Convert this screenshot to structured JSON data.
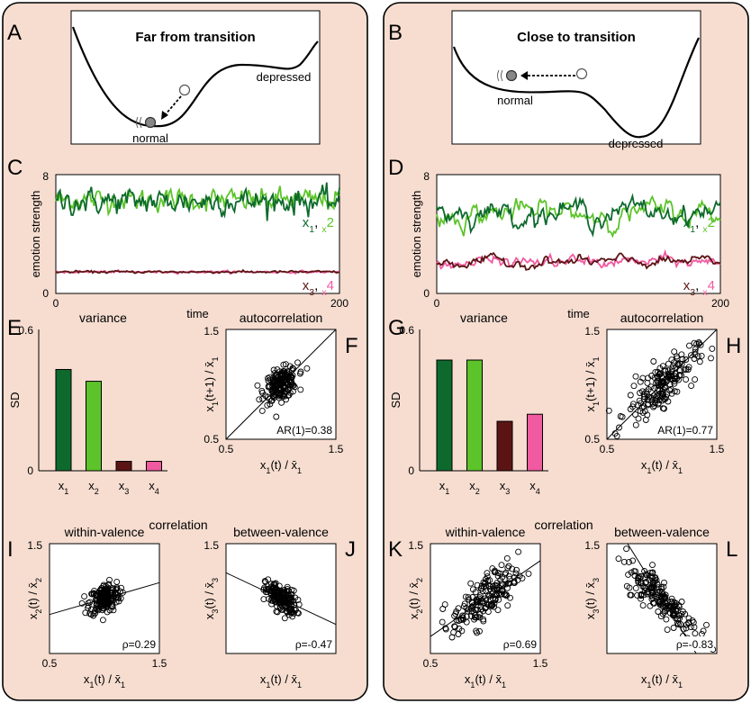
{
  "colors": {
    "panel_bg": "#f6ddd0",
    "x1": "#0e6a2c",
    "x2": "#5cc42a",
    "x3": "#5b1414",
    "x4": "#f05aa0"
  },
  "halves": [
    {
      "letters": {
        "landscape": "A",
        "timeseries": "C",
        "variance": "E",
        "autocorr": "F",
        "within": "I",
        "between": "J"
      },
      "landscape": {
        "title": "Far from transition",
        "label_left": "normal",
        "label_right": "depressed"
      },
      "timeseries": {
        "ylabel": "emotion strength",
        "xlabel": "time",
        "x_ticks": [
          "0",
          "200"
        ],
        "y_ticks": [
          "0",
          "8"
        ],
        "legend_top": [
          "x",
          "1",
          ", ",
          "x",
          "2"
        ],
        "legend_bottom": [
          "x",
          "3",
          ", ",
          "x",
          "4"
        ]
      },
      "variance": {
        "title": "variance",
        "ylabel": "SD",
        "y_ticks": [
          "0",
          "0.6"
        ],
        "categories": [
          [
            "x",
            "1"
          ],
          [
            "x",
            "2"
          ],
          [
            "x",
            "3"
          ],
          [
            "x",
            "4"
          ]
        ]
      },
      "autocorr": {
        "title": "autocorrelation",
        "xlabel": "x1(t) / x̄1",
        "ylabel": "x1(t+1) / x̄1",
        "x_ticks": [
          "0.5",
          "1.5"
        ],
        "y_ticks": [
          "0.5",
          "1.5"
        ],
        "stat": "AR(1)=0.38"
      },
      "within": {
        "title": "within-valence",
        "xlabel": "x1(t) / x̄1",
        "ylabel": "x2(t) / x̄2",
        "x_ticks": [
          "0.5",
          "1.5"
        ],
        "y_ticks": [
          "1.5"
        ],
        "stat": "ρ=0.29"
      },
      "between": {
        "title": "between-valence",
        "xlabel": "x1(t) / x̄1",
        "ylabel": "x3(t) / x̄3",
        "y_ticks": [
          "1.5"
        ],
        "stat": "ρ=-0.47"
      },
      "correlation_title": "correlation"
    },
    {
      "letters": {
        "landscape": "B",
        "timeseries": "D",
        "variance": "G",
        "autocorr": "H",
        "within": "K",
        "between": "L"
      },
      "landscape": {
        "title": "Close to transition",
        "label_left": "normal",
        "label_right": "depressed"
      },
      "timeseries": {
        "ylabel": "emotion strength",
        "xlabel": "time",
        "x_ticks": [
          "0",
          "200"
        ],
        "y_ticks": [
          "0",
          "8"
        ],
        "legend_top": [
          "x",
          "1",
          ", ",
          "x",
          "2"
        ],
        "legend_bottom": [
          "x",
          "3",
          ", ",
          "x",
          "4"
        ]
      },
      "variance": {
        "title": "variance",
        "ylabel": "SD",
        "y_ticks": [
          "0",
          "0.6"
        ],
        "categories": [
          [
            "x",
            "1"
          ],
          [
            "x",
            "2"
          ],
          [
            "x",
            "3"
          ],
          [
            "x",
            "4"
          ]
        ]
      },
      "autocorr": {
        "title": "autocorrelation",
        "xlabel": "x1(t) / x̄1",
        "ylabel": "x1(t+1) / x̄1",
        "x_ticks": [
          "0.5",
          "1.5"
        ],
        "y_ticks": [
          "0.5",
          "1.5"
        ],
        "stat": "AR(1)=0.77"
      },
      "within": {
        "title": "within-valence",
        "xlabel": "x1(t) / x̄1",
        "ylabel": "x2(t) / x̄2",
        "x_ticks": [
          "0.5",
          "1.5"
        ],
        "y_ticks": [
          "1.5"
        ],
        "stat": "ρ=0.69"
      },
      "between": {
        "title": "between-valence",
        "xlabel": "x1(t) / x̄1",
        "ylabel": "x3(t) / x̄3",
        "y_ticks": [
          "1.5"
        ],
        "stat": "ρ=-0.83"
      },
      "correlation_title": "correlation"
    }
  ],
  "chart_data": [
    {
      "type": "line",
      "panel": "C",
      "xlim": [
        0,
        200
      ],
      "ylim": [
        0,
        8
      ],
      "series": [
        {
          "name": "x1",
          "mean": 6.2,
          "sd": 0.43
        },
        {
          "name": "x2",
          "mean": 6.3,
          "sd": 0.38
        },
        {
          "name": "x3",
          "mean": 1.45,
          "sd": 0.04
        },
        {
          "name": "x4",
          "mean": 1.45,
          "sd": 0.04
        }
      ]
    },
    {
      "type": "line",
      "panel": "D",
      "xlim": [
        0,
        200
      ],
      "ylim": [
        0,
        8
      ],
      "series": [
        {
          "name": "x1",
          "mean": 5.5,
          "sd": 0.47
        },
        {
          "name": "x2",
          "mean": 5.4,
          "sd": 0.47
        },
        {
          "name": "x3",
          "mean": 2.1,
          "sd": 0.21
        },
        {
          "name": "x4",
          "mean": 2.1,
          "sd": 0.24
        }
      ]
    },
    {
      "type": "bar",
      "panel": "E",
      "categories": [
        "x1",
        "x2",
        "x3",
        "x4"
      ],
      "values": [
        0.43,
        0.38,
        0.04,
        0.04
      ],
      "ylim": [
        0,
        0.6
      ]
    },
    {
      "type": "bar",
      "panel": "G",
      "categories": [
        "x1",
        "x2",
        "x3",
        "x4"
      ],
      "values": [
        0.47,
        0.47,
        0.21,
        0.24
      ],
      "ylim": [
        0,
        0.6
      ]
    },
    {
      "type": "scatter",
      "panel": "F",
      "xlim": [
        0.5,
        1.5
      ],
      "ylim": [
        0.5,
        1.5
      ],
      "center": [
        1.0,
        1.0
      ],
      "spread": 0.075,
      "r": 0.38,
      "line_slope": 1
    },
    {
      "type": "scatter",
      "panel": "H",
      "xlim": [
        0.5,
        1.5
      ],
      "ylim": [
        0.5,
        1.5
      ],
      "center": [
        1.0,
        1.0
      ],
      "spread": 0.16,
      "r": 0.77,
      "line_slope": 1
    },
    {
      "type": "scatter",
      "panel": "I",
      "xlim": [
        0.5,
        1.5
      ],
      "ylim": [
        0.5,
        1.5
      ],
      "center": [
        1.0,
        1.0
      ],
      "spread": 0.07,
      "r": 0.29,
      "line_slope": 0.29
    },
    {
      "type": "scatter",
      "panel": "J",
      "xlim": [
        0.5,
        1.5
      ],
      "ylim": [
        0.5,
        1.5
      ],
      "center": [
        1.0,
        1.0
      ],
      "spread": 0.07,
      "r": -0.47,
      "line_slope": -0.47
    },
    {
      "type": "scatter",
      "panel": "K",
      "xlim": [
        0.5,
        1.5
      ],
      "ylim": [
        0.5,
        1.5
      ],
      "center": [
        1.0,
        1.0
      ],
      "spread": 0.15,
      "r": 0.69,
      "line_slope": 0.69
    },
    {
      "type": "scatter",
      "panel": "L",
      "xlim": [
        0.5,
        1.5
      ],
      "ylim": [
        0.5,
        1.5
      ],
      "center": [
        1.0,
        1.0
      ],
      "spread": 0.17,
      "r": -0.83,
      "line_slope": -1.6
    }
  ]
}
